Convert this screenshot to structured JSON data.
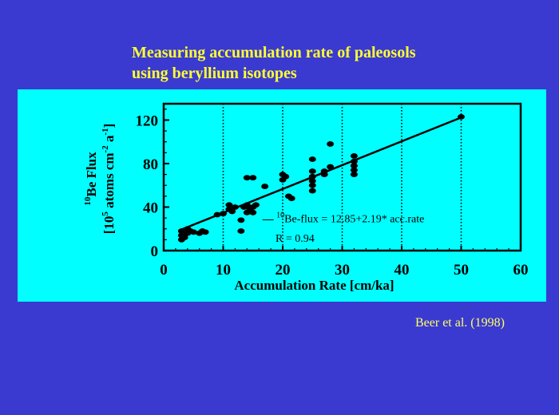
{
  "slide": {
    "title_line1": "Measuring accumulation rate of paleosols",
    "title_line2": "using beryllium isotopes",
    "citation": "Beer et al. (1998)"
  },
  "colors": {
    "background": "#3a3ad0",
    "title": "#ffff33",
    "panel": "#00ffff",
    "ink": "#000000",
    "citation": "#ffff66"
  },
  "chart_data": {
    "type": "scatter",
    "xlabel": "Accumulation Rate [cm/ka]",
    "ylabel_line1": "Be Flux",
    "ylabel_line1_sup": "10",
    "ylabel_line2": "[10",
    "ylabel_line2_sup1": "5",
    "ylabel_line2_mid": " atoms cm",
    "ylabel_line2_sup2": "-2",
    "ylabel_line2_mid2": " a",
    "ylabel_line2_sup3": "-1",
    "ylabel_line2_end": "]",
    "xlim": [
      0,
      60
    ],
    "ylim": [
      0,
      135
    ],
    "x_ticks": [
      "0",
      "10",
      "20",
      "30",
      "40",
      "50",
      "60"
    ],
    "x_tick_values": [
      0,
      10,
      20,
      30,
      40,
      50,
      60
    ],
    "y_ticks": [
      "0",
      "40",
      "80",
      "120"
    ],
    "y_tick_values": [
      0,
      40,
      80,
      120
    ],
    "vertical_grid": [
      10,
      20,
      30,
      40,
      50
    ],
    "fit": {
      "intercept": 12.85,
      "slope": 2.19,
      "x_range": [
        3,
        50
      ],
      "label_prefix": "10",
      "label_text": "Be-flux = 12.85+2.19* acc.rate",
      "r_text": "R = 0.94"
    },
    "points": [
      {
        "x": 3,
        "y": 10
      },
      {
        "x": 3,
        "y": 14
      },
      {
        "x": 3,
        "y": 18
      },
      {
        "x": 3.5,
        "y": 12
      },
      {
        "x": 4,
        "y": 16
      },
      {
        "x": 4,
        "y": 20
      },
      {
        "x": 4.5,
        "y": 18
      },
      {
        "x": 5,
        "y": 17
      },
      {
        "x": 6,
        "y": 16
      },
      {
        "x": 6.5,
        "y": 18
      },
      {
        "x": 7,
        "y": 17
      },
      {
        "x": 9,
        "y": 33
      },
      {
        "x": 10,
        "y": 34
      },
      {
        "x": 11,
        "y": 38
      },
      {
        "x": 11,
        "y": 42
      },
      {
        "x": 11.5,
        "y": 36
      },
      {
        "x": 12,
        "y": 40
      },
      {
        "x": 13,
        "y": 28
      },
      {
        "x": 13,
        "y": 18
      },
      {
        "x": 13.5,
        "y": 40
      },
      {
        "x": 14,
        "y": 35
      },
      {
        "x": 14,
        "y": 42
      },
      {
        "x": 14,
        "y": 67
      },
      {
        "x": 14.5,
        "y": 38
      },
      {
        "x": 15,
        "y": 67
      },
      {
        "x": 15,
        "y": 40
      },
      {
        "x": 15,
        "y": 35
      },
      {
        "x": 15.5,
        "y": 42
      },
      {
        "x": 17,
        "y": 59
      },
      {
        "x": 20,
        "y": 65
      },
      {
        "x": 20,
        "y": 70
      },
      {
        "x": 20.5,
        "y": 68
      },
      {
        "x": 21,
        "y": 50
      },
      {
        "x": 21.5,
        "y": 48
      },
      {
        "x": 25,
        "y": 55
      },
      {
        "x": 25,
        "y": 60
      },
      {
        "x": 25,
        "y": 64
      },
      {
        "x": 25,
        "y": 68
      },
      {
        "x": 25,
        "y": 73
      },
      {
        "x": 25,
        "y": 84
      },
      {
        "x": 27,
        "y": 70
      },
      {
        "x": 27,
        "y": 73
      },
      {
        "x": 28,
        "y": 77
      },
      {
        "x": 28,
        "y": 98
      },
      {
        "x": 32,
        "y": 70
      },
      {
        "x": 32,
        "y": 74
      },
      {
        "x": 32,
        "y": 78
      },
      {
        "x": 32,
        "y": 82
      },
      {
        "x": 32,
        "y": 87
      },
      {
        "x": 50,
        "y": 123
      }
    ]
  }
}
